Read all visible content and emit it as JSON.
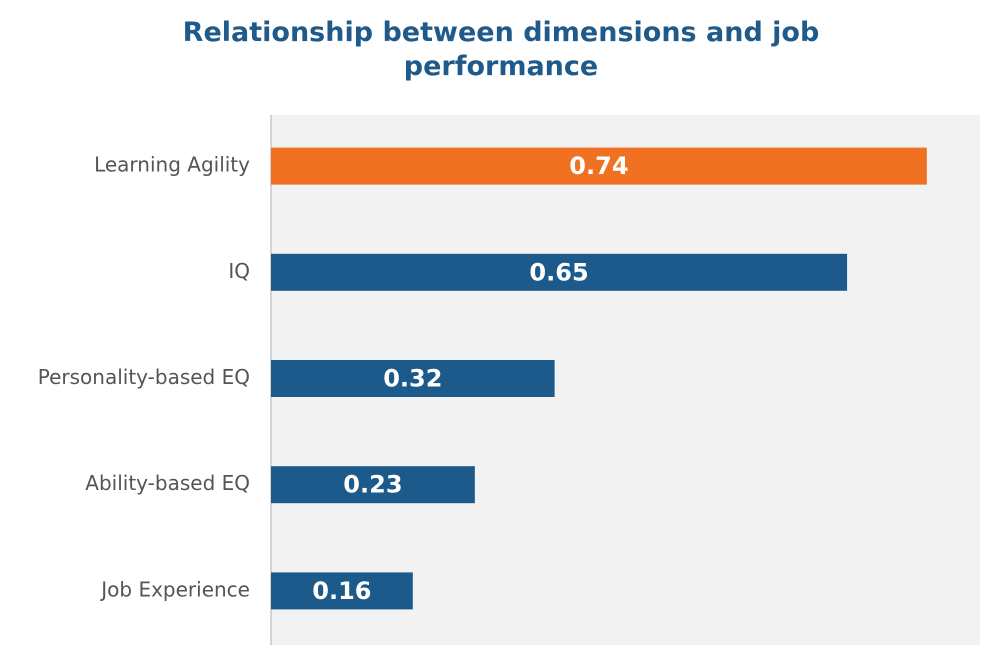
{
  "chart_data": {
    "type": "bar",
    "horizontal": true,
    "title": "Relationship between dimensions and job performance",
    "categories": [
      "Learning Agility",
      "IQ",
      "Personality-based EQ",
      "Ability-based EQ",
      "Job Experience"
    ],
    "values": [
      0.74,
      0.65,
      0.32,
      0.23,
      0.16
    ],
    "colors": [
      "#f07122",
      "#1b5a8a",
      "#1b5a8a",
      "#1b5a8a",
      "#1b5a8a"
    ],
    "xlim": [
      0,
      0.8
    ]
  }
}
